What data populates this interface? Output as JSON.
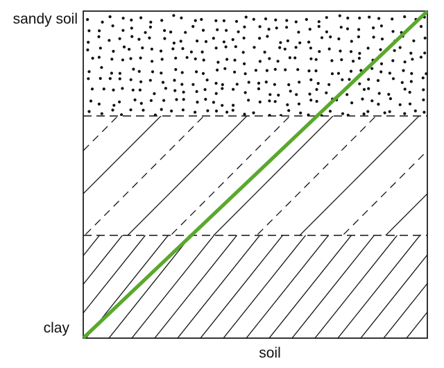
{
  "figure": {
    "labels": {
      "y_top": "sandy soil",
      "y_bottom": "clay",
      "x_axis": "soil"
    },
    "layers": [
      {
        "position": "top",
        "pattern": "stipple-dots"
      },
      {
        "position": "middle",
        "pattern": "alternating-dashed-and-solid-diagonal-lines"
      },
      {
        "position": "bottom",
        "pattern": "dense-diagonal-hatch"
      }
    ],
    "line": {
      "description": "straight diagonal line from bottom-left (clay) to top-right (sandy soil)",
      "color": "#5aa82d"
    },
    "colors": {
      "ink": "#111111",
      "background": "#ffffff"
    }
  }
}
